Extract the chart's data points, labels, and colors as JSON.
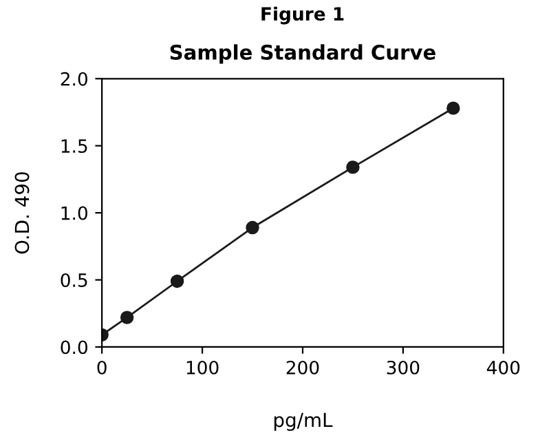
{
  "chart_data": {
    "type": "line",
    "title": "Sample Standard Curve",
    "xlabel": "pg/mL",
    "ylabel": "O.D. 490",
    "annotations": [
      "Figure 1"
    ],
    "x": [
      0,
      25,
      75,
      150,
      250,
      350
    ],
    "series": [
      {
        "color": "#1a1a1a",
        "values": [
          0.09,
          0.22,
          0.49,
          0.89,
          1.34,
          1.78
        ]
      }
    ],
    "xlim": [
      0,
      400
    ],
    "xticks": [
      0,
      100,
      200,
      300,
      400
    ],
    "ylim": [
      0,
      2.0
    ],
    "yticks": [
      {
        "value": 0,
        "label": "0.0"
      },
      {
        "value": 0.5,
        "label": "0.5"
      },
      {
        "value": 1.0,
        "label": "1.0"
      },
      {
        "value": 1.5,
        "label": "1.5"
      },
      {
        "value": 2.0,
        "label": "2.0"
      }
    ],
    "grid": false,
    "legend": false,
    "marker": "circle",
    "line_style": "solid"
  }
}
